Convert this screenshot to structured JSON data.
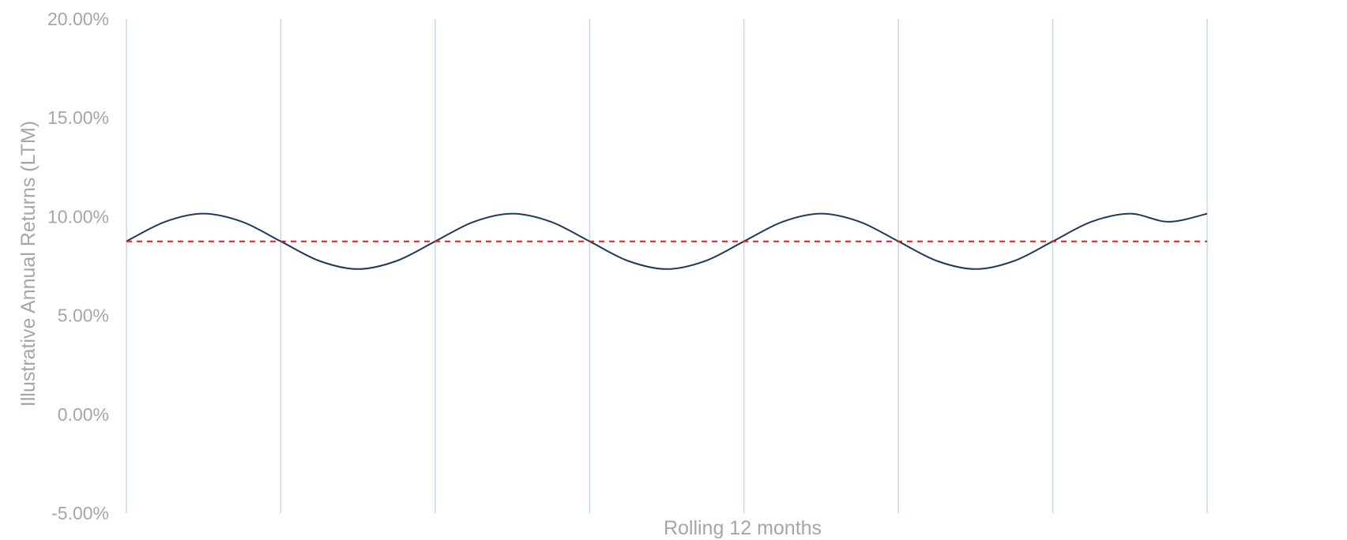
{
  "chart_data": {
    "type": "line",
    "title": "",
    "xlabel": "Rolling 12 months",
    "ylabel": "Illustrative Annual Returns (LTM)",
    "ylim": [
      -0.05,
      0.2
    ],
    "xlim": [
      0,
      7
    ],
    "y_ticks": [
      {
        "value": 0.2,
        "label": "20.00%"
      },
      {
        "value": 0.15,
        "label": "15.00%"
      },
      {
        "value": 0.1,
        "label": "10.00%"
      },
      {
        "value": 0.05,
        "label": "5.00%"
      },
      {
        "value": 0.0,
        "label": "0.00%"
      },
      {
        "value": -0.05,
        "label": "-5.00%"
      }
    ],
    "x_gridlines": [
      0,
      1,
      2,
      3,
      4,
      5,
      6,
      7
    ],
    "grid": {
      "vertical": true,
      "horizontal": false
    },
    "legend": "none",
    "series": [
      {
        "style": "solid",
        "color": "#1f3a5a",
        "x": [
          0,
          0.25,
          0.5,
          0.75,
          1,
          1.25,
          1.5,
          1.75,
          2,
          2.25,
          2.5,
          2.75,
          3,
          3.25,
          3.5,
          3.75,
          4,
          4.25,
          4.5,
          4.75,
          5,
          5.25,
          5.5,
          5.75,
          6,
          6.25,
          6.5,
          6.75,
          7
        ],
        "values": [
          0.0875,
          0.0974,
          0.1015,
          0.0974,
          0.0875,
          0.0776,
          0.0735,
          0.0776,
          0.0875,
          0.0974,
          0.1015,
          0.0974,
          0.0875,
          0.0776,
          0.0735,
          0.0776,
          0.0875,
          0.0974,
          0.1015,
          0.0974,
          0.0875,
          0.0776,
          0.0735,
          0.0776,
          0.0875,
          0.0974,
          0.1015,
          0.0974,
          0.1015
        ]
      },
      {
        "style": "dashed",
        "color": "#e02020",
        "x": [
          0,
          7
        ],
        "values": [
          0.0875,
          0.0875
        ]
      }
    ],
    "colors": {
      "gridline": "#c5d9ee",
      "tick_text": "#a6a6a6",
      "axis_title": "#a6a6a6"
    }
  }
}
